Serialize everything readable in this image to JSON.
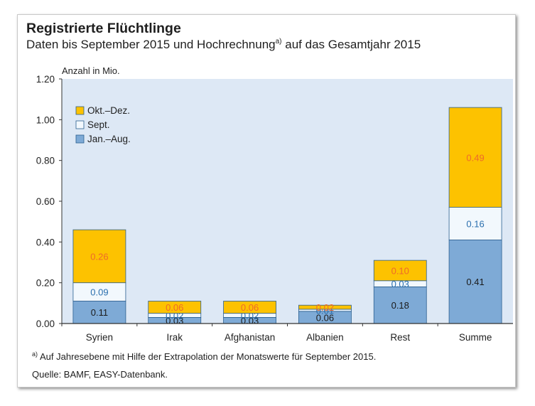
{
  "header": {
    "title": "Registrierte Flüchtlinge",
    "subtitle_main": "Daten bis September 2015 und Hochrechnung",
    "subtitle_sup": "a)",
    "subtitle_rest": " auf das Gesamtjahr 2015"
  },
  "footer": {
    "footnote_marker": "a)",
    "footnote_text": "Auf Jahresebene mit Hilfe der Extrapolation der Monatswerte für September 2015.",
    "source": "Quelle: BAMF, EASY-Datenbank."
  },
  "colors": {
    "plot_background": "#dde8f5",
    "jan_aug": "#7eaad6",
    "sept": "#f2f8fd",
    "okt_dez": "#fdc200",
    "jan_aug_label": "#1a1a1a",
    "sept_label": "#2a6fae",
    "okt_dez_label": "#ef6a2a",
    "axis": "#333333"
  },
  "chart_data": {
    "type": "bar",
    "stacked": true,
    "ylabel": "Anzahl in Mio.",
    "ylim": [
      0,
      1.2
    ],
    "yticks": [
      "0.00",
      "0.20",
      "0.40",
      "0.60",
      "0.80",
      "1.00",
      "1.20"
    ],
    "grid": false,
    "legend_position": "top-left",
    "categories": [
      "Syrien",
      "Irak",
      "Afghanistan",
      "Albanien",
      "Rest",
      "Summe"
    ],
    "series": [
      {
        "name": "Jan.–Aug.",
        "color": "#7eaad6",
        "label_color": "#1a1a1a",
        "values": [
          0.11,
          0.03,
          0.03,
          0.06,
          0.18,
          0.41
        ],
        "labels": [
          "0.11",
          "0.03",
          "0.03",
          "0.06",
          "0.18",
          "0.41"
        ]
      },
      {
        "name": "Sept.",
        "color": "#f2f8fd",
        "label_color": "#2a6fae",
        "values": [
          0.09,
          0.02,
          0.02,
          0.01,
          0.03,
          0.16
        ],
        "labels": [
          "0.09",
          "0.02",
          "0.02",
          "0.01",
          "0.03",
          "0.16"
        ]
      },
      {
        "name": "Okt.–Dez.",
        "color": "#fdc200",
        "label_color": "#ef6a2a",
        "values": [
          0.26,
          0.06,
          0.06,
          0.02,
          0.1,
          0.49
        ],
        "labels": [
          "0.26",
          "0.06",
          "0.06",
          "0.02",
          "0.10",
          "0.49"
        ]
      }
    ]
  }
}
